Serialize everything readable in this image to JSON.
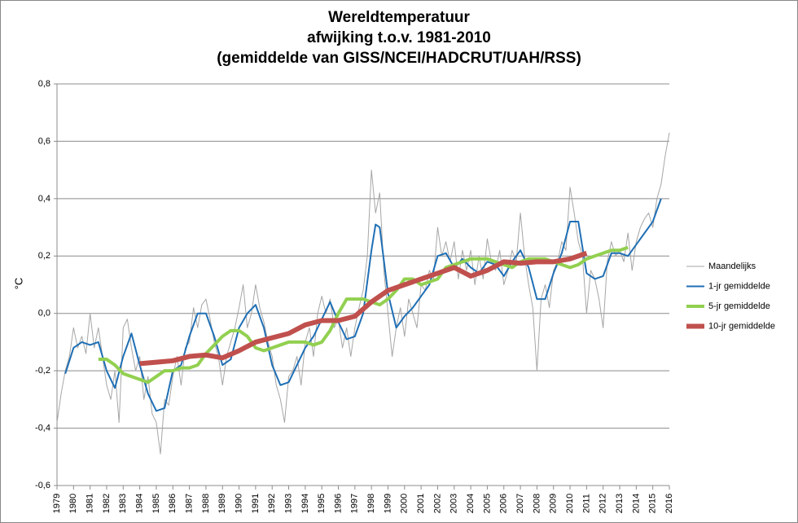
{
  "chart_data": {
    "type": "line",
    "title": [
      "Wereldtemperatuur",
      "afwijking t.o.v. 1981-2010",
      "(gemiddelde van GISS/NCEI/HADCRUT/UAH/RSS)"
    ],
    "ylabel": "°C",
    "xlim": [
      1979,
      2016
    ],
    "xticks": [
      1979,
      1980,
      1981,
      1982,
      1983,
      1984,
      1985,
      1986,
      1987,
      1988,
      1989,
      1990,
      1991,
      1992,
      1993,
      1994,
      1995,
      1996,
      1997,
      1998,
      1999,
      2000,
      2001,
      2002,
      2003,
      2004,
      2005,
      2006,
      2007,
      2008,
      2009,
      2010,
      2011,
      2012,
      2013,
      2014,
      2015,
      2016
    ],
    "ylim": [
      -0.6,
      0.8
    ],
    "yticks": [
      {
        "value": -0.6,
        "label": "-0,6"
      },
      {
        "value": -0.4,
        "label": "-0,4"
      },
      {
        "value": -0.2,
        "label": "-0,2"
      },
      {
        "value": 0,
        "label": "0,0"
      },
      {
        "value": 0.2,
        "label": "0,2"
      },
      {
        "value": 0.4,
        "label": "0,4"
      },
      {
        "value": 0.6,
        "label": "0,6"
      },
      {
        "value": 0.8,
        "label": "0,8"
      }
    ],
    "grid": true,
    "legend": "right",
    "series": [
      {
        "name": "Maandelijks",
        "color": "#a6a6a6",
        "width": 1,
        "x": [
          1979,
          1979.25,
          1979.5,
          1979.75,
          1980,
          1980.25,
          1980.5,
          1980.75,
          1981,
          1981.25,
          1981.5,
          1981.75,
          1982,
          1982.25,
          1982.5,
          1982.75,
          1983,
          1983.25,
          1983.5,
          1983.75,
          1984,
          1984.25,
          1984.5,
          1984.75,
          1985,
          1985.25,
          1985.5,
          1985.75,
          1986,
          1986.25,
          1986.5,
          1986.75,
          1987,
          1987.25,
          1987.5,
          1987.75,
          1988,
          1988.25,
          1988.5,
          1988.75,
          1989,
          1989.25,
          1989.5,
          1989.75,
          1990,
          1990.25,
          1990.5,
          1990.75,
          1991,
          1991.25,
          1991.5,
          1991.75,
          1992,
          1992.25,
          1992.5,
          1992.75,
          1993,
          1993.25,
          1993.5,
          1993.75,
          1994,
          1994.25,
          1994.5,
          1994.75,
          1995,
          1995.25,
          1995.5,
          1995.75,
          1996,
          1996.25,
          1996.5,
          1996.75,
          1997,
          1997.25,
          1997.5,
          1997.75,
          1998,
          1998.25,
          1998.5,
          1998.75,
          1999,
          1999.25,
          1999.5,
          1999.75,
          2000,
          2000.25,
          2000.5,
          2000.75,
          2001,
          2001.25,
          2001.5,
          2001.75,
          2002,
          2002.25,
          2002.5,
          2002.75,
          2003,
          2003.25,
          2003.5,
          2003.75,
          2004,
          2004.25,
          2004.5,
          2004.75,
          2005,
          2005.25,
          2005.5,
          2005.75,
          2006,
          2006.25,
          2006.5,
          2006.75,
          2007,
          2007.25,
          2007.5,
          2007.75,
          2008,
          2008.25,
          2008.5,
          2008.75,
          2009,
          2009.25,
          2009.5,
          2009.75,
          2010,
          2010.25,
          2010.5,
          2010.75,
          2011,
          2011.25,
          2011.5,
          2011.75,
          2012,
          2012.25,
          2012.5,
          2012.75,
          2013,
          2013.25,
          2013.5,
          2013.75,
          2014,
          2014.25,
          2014.5,
          2014.75,
          2015,
          2015.25,
          2015.5,
          2015.75,
          2016
        ],
        "values": [
          -0.38,
          -0.28,
          -0.2,
          -0.15,
          -0.05,
          -0.12,
          -0.08,
          -0.14,
          0,
          -0.12,
          -0.05,
          -0.15,
          -0.25,
          -0.3,
          -0.2,
          -0.38,
          -0.05,
          -0.02,
          -0.12,
          -0.2,
          -0.15,
          -0.3,
          -0.22,
          -0.35,
          -0.38,
          -0.49,
          -0.3,
          -0.32,
          -0.22,
          -0.15,
          -0.25,
          -0.12,
          -0.1,
          0.02,
          -0.05,
          0.03,
          0.05,
          -0.02,
          -0.1,
          -0.15,
          -0.25,
          -0.15,
          -0.1,
          -0.05,
          0.02,
          0.1,
          -0.05,
          0,
          0.1,
          0.02,
          -0.03,
          -0.1,
          -0.15,
          -0.25,
          -0.3,
          -0.38,
          -0.22,
          -0.2,
          -0.15,
          -0.25,
          -0.1,
          -0.05,
          -0.15,
          0,
          0.06,
          0,
          0.05,
          -0.05,
          -0.02,
          -0.12,
          -0.05,
          -0.15,
          -0.05,
          0.02,
          0.08,
          0.2,
          0.5,
          0.35,
          0.42,
          0.15,
          0,
          -0.15,
          -0.05,
          0.02,
          -0.08,
          0.05,
          0,
          -0.05,
          0.1,
          0.08,
          0.15,
          0.12,
          0.3,
          0.2,
          0.25,
          0.18,
          0.25,
          0.12,
          0.22,
          0.15,
          0.22,
          0.1,
          0.2,
          0.12,
          0.26,
          0.18,
          0.15,
          0.22,
          0.1,
          0.15,
          0.22,
          0.18,
          0.35,
          0.2,
          0.1,
          0.02,
          -0.2,
          0.05,
          0.1,
          0.02,
          0.15,
          0.18,
          0.25,
          0.22,
          0.44,
          0.35,
          0.25,
          0.2,
          0,
          0.15,
          0.12,
          0.05,
          -0.05,
          0.18,
          0.25,
          0.2,
          0.22,
          0.18,
          0.28,
          0.15,
          0.25,
          0.3,
          0.33,
          0.35,
          0.3,
          0.4,
          0.45,
          0.55,
          0.63
        ]
      },
      {
        "name": "1-jr gemiddelde",
        "color": "#1f6fb5",
        "width": 2,
        "x": [
          1979.5,
          1980,
          1980.5,
          1981,
          1981.5,
          1982,
          1982.5,
          1983,
          1983.5,
          1984,
          1984.5,
          1985,
          1985.5,
          1986,
          1986.5,
          1987,
          1987.5,
          1988,
          1988.5,
          1989,
          1989.5,
          1990,
          1990.5,
          1991,
          1991.5,
          1992,
          1992.5,
          1993,
          1993.5,
          1994,
          1994.5,
          1995,
          1995.5,
          1996,
          1996.5,
          1997,
          1997.5,
          1998,
          1998.25,
          1998.5,
          1999,
          1999.5,
          2000,
          2000.5,
          2001,
          2001.5,
          2002,
          2002.5,
          2003,
          2003.5,
          2004,
          2004.5,
          2005,
          2005.5,
          2006,
          2006.5,
          2007,
          2007.5,
          2008,
          2008.5,
          2009,
          2009.5,
          2010,
          2010.5,
          2011,
          2011.5,
          2012,
          2012.5,
          2013,
          2013.5,
          2014,
          2014.5,
          2015,
          2015.5
        ],
        "values": [
          -0.21,
          -0.12,
          -0.1,
          -0.11,
          -0.1,
          -0.2,
          -0.26,
          -0.15,
          -0.07,
          -0.18,
          -0.28,
          -0.34,
          -0.33,
          -0.2,
          -0.18,
          -0.08,
          0,
          0,
          -0.08,
          -0.18,
          -0.16,
          -0.05,
          0,
          0.03,
          -0.05,
          -0.18,
          -0.25,
          -0.24,
          -0.18,
          -0.12,
          -0.08,
          -0.02,
          0.04,
          -0.03,
          -0.09,
          -0.08,
          0,
          0.22,
          0.31,
          0.3,
          0.07,
          -0.05,
          -0.01,
          0.02,
          0.06,
          0.1,
          0.2,
          0.21,
          0.16,
          0.19,
          0.16,
          0.14,
          0.18,
          0.17,
          0.13,
          0.18,
          0.22,
          0.16,
          0.05,
          0.05,
          0.14,
          0.21,
          0.32,
          0.32,
          0.14,
          0.12,
          0.13,
          0.21,
          0.21,
          0.2,
          0.24,
          0.28,
          0.32,
          0.4
        ]
      },
      {
        "name": "5-jr gemiddelde",
        "color": "#92d050",
        "width": 4,
        "x": [
          1981.5,
          1982,
          1982.5,
          1983,
          1983.5,
          1984,
          1984.5,
          1985,
          1985.5,
          1986,
          1986.5,
          1987,
          1987.5,
          1988,
          1988.5,
          1989,
          1989.5,
          1990,
          1990.5,
          1991,
          1991.5,
          1992,
          1992.5,
          1993,
          1993.5,
          1994,
          1994.5,
          1995,
          1995.5,
          1996,
          1996.5,
          1997,
          1997.5,
          1998,
          1998.5,
          1999,
          1999.5,
          2000,
          2000.5,
          2001,
          2001.5,
          2002,
          2002.5,
          2003,
          2003.5,
          2004,
          2004.5,
          2005,
          2005.5,
          2006,
          2006.5,
          2007,
          2007.5,
          2008,
          2008.5,
          2009,
          2009.5,
          2010,
          2010.5,
          2011,
          2011.5,
          2012,
          2012.5,
          2013,
          2013.5
        ],
        "values": [
          -0.16,
          -0.16,
          -0.18,
          -0.21,
          -0.22,
          -0.23,
          -0.24,
          -0.22,
          -0.2,
          -0.2,
          -0.19,
          -0.19,
          -0.18,
          -0.14,
          -0.11,
          -0.08,
          -0.06,
          -0.06,
          -0.08,
          -0.12,
          -0.13,
          -0.12,
          -0.11,
          -0.1,
          -0.1,
          -0.1,
          -0.11,
          -0.1,
          -0.06,
          0,
          0.05,
          0.05,
          0.05,
          0.04,
          0.03,
          0.05,
          0.08,
          0.12,
          0.12,
          0.1,
          0.11,
          0.12,
          0.16,
          0.17,
          0.18,
          0.19,
          0.19,
          0.19,
          0.18,
          0.17,
          0.16,
          0.18,
          0.19,
          0.19,
          0.19,
          0.18,
          0.17,
          0.16,
          0.17,
          0.19,
          0.2,
          0.21,
          0.22,
          0.22,
          0.23
        ]
      },
      {
        "name": "10-jr gemiddelde",
        "color": "#c0504d",
        "width": 6,
        "x": [
          1984,
          1985,
          1986,
          1987,
          1988,
          1989,
          1990,
          1991,
          1992,
          1993,
          1994,
          1995,
          1996,
          1997,
          1998,
          1999,
          2000,
          2001,
          2002,
          2003,
          2004,
          2005,
          2006,
          2007,
          2008,
          2009,
          2010,
          2011
        ],
        "values": [
          -0.175,
          -0.17,
          -0.165,
          -0.15,
          -0.145,
          -0.155,
          -0.13,
          -0.1,
          -0.085,
          -0.07,
          -0.04,
          -0.025,
          -0.025,
          -0.01,
          0.04,
          0.08,
          0.1,
          0.12,
          0.14,
          0.16,
          0.13,
          0.15,
          0.18,
          0.175,
          0.18,
          0.18,
          0.19,
          0.21
        ]
      }
    ]
  }
}
